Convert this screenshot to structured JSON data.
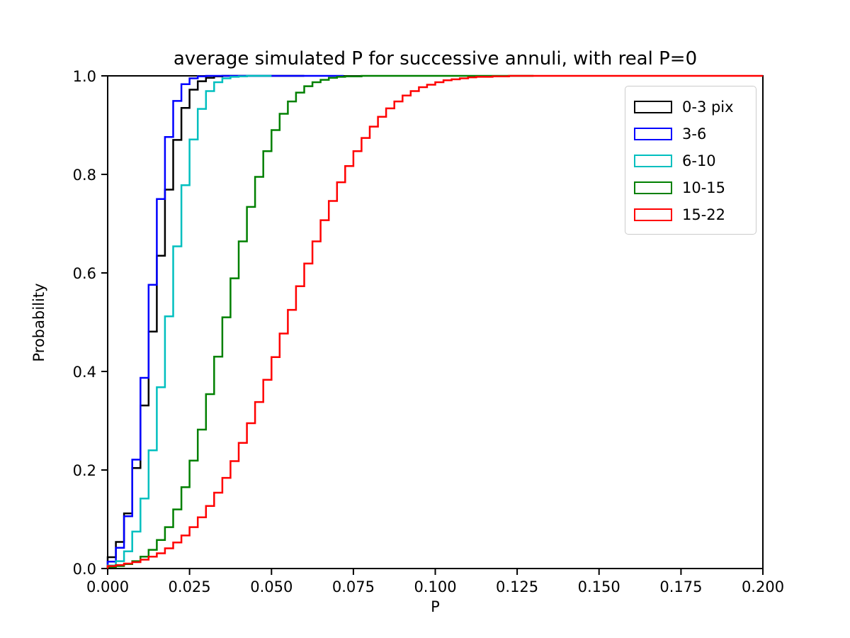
{
  "chart_data": {
    "type": "step-cdf-histogram",
    "title": "average simulated P for successive annuli, with real P=0",
    "xlabel": "P",
    "ylabel": "Probability",
    "xlim": [
      0.0,
      0.2
    ],
    "ylim": [
      0.0,
      1.0
    ],
    "xticks": [
      0.0,
      0.025,
      0.05,
      0.075,
      0.1,
      0.125,
      0.15,
      0.175,
      0.2
    ],
    "xtick_labels": [
      "0.000",
      "0.025",
      "0.050",
      "0.075",
      "0.100",
      "0.125",
      "0.150",
      "0.175",
      "0.200"
    ],
    "yticks": [
      0.0,
      0.2,
      0.4,
      0.6,
      0.8,
      1.0
    ],
    "ytick_labels": [
      "0.0",
      "0.2",
      "0.4",
      "0.6",
      "0.8",
      "1.0"
    ],
    "grid": false,
    "legend_position": "upper right",
    "bin_width": 0.0025,
    "frame_color": "#000000",
    "series": [
      {
        "label": "0-3 pix",
        "color": "#000000",
        "median": 0.015,
        "cdf_levels": [
          0.023,
          0.054,
          0.112,
          0.204,
          0.331,
          0.481,
          0.635,
          0.769,
          0.87,
          0.935,
          0.972,
          0.989,
          0.996,
          0.999,
          1.0
        ],
        "line_end_x": 0.06
      },
      {
        "label": "3-6",
        "color": "#0000ff",
        "median": 0.014,
        "cdf_levels": [
          0.014,
          0.042,
          0.106,
          0.221,
          0.387,
          0.576,
          0.75,
          0.876,
          0.949,
          0.983,
          0.995,
          0.999,
          1.0
        ],
        "line_end_x": 0.072
      },
      {
        "label": "6-10",
        "color": "#00bfbf",
        "median": 0.02,
        "cdf_levels": [
          0.006,
          0.015,
          0.035,
          0.075,
          0.142,
          0.24,
          0.368,
          0.512,
          0.654,
          0.778,
          0.871,
          0.933,
          0.969,
          0.987,
          0.995,
          0.998,
          0.999,
          1.0
        ],
        "line_end_x": 0.05
      },
      {
        "label": "10-15",
        "color": "#008000",
        "median": 0.037,
        "cdf_levels": [
          0.003,
          0.005,
          0.009,
          0.015,
          0.024,
          0.038,
          0.058,
          0.084,
          0.12,
          0.165,
          0.219,
          0.282,
          0.354,
          0.43,
          0.51,
          0.589,
          0.664,
          0.734,
          0.795,
          0.847,
          0.89,
          0.923,
          0.948,
          0.966,
          0.979,
          0.987,
          0.992,
          0.996,
          0.998,
          0.999,
          0.999,
          1.0
        ],
        "line_end_x": 0.13
      },
      {
        "label": "15-22",
        "color": "#ff0000",
        "median": 0.056,
        "cdf_levels": [
          0.005,
          0.007,
          0.01,
          0.013,
          0.018,
          0.024,
          0.031,
          0.041,
          0.053,
          0.067,
          0.084,
          0.104,
          0.127,
          0.154,
          0.184,
          0.218,
          0.255,
          0.295,
          0.338,
          0.383,
          0.429,
          0.477,
          0.525,
          0.573,
          0.619,
          0.664,
          0.707,
          0.746,
          0.784,
          0.817,
          0.847,
          0.874,
          0.897,
          0.917,
          0.934,
          0.948,
          0.96,
          0.969,
          0.977,
          0.982,
          0.987,
          0.991,
          0.993,
          0.995,
          0.997,
          0.998,
          0.998,
          0.999,
          0.999,
          1.0
        ],
        "line_end_x": 0.2
      }
    ]
  }
}
